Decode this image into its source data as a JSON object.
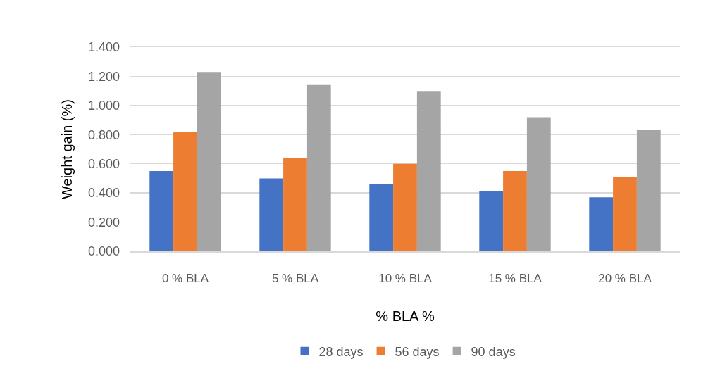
{
  "chart_data": {
    "type": "bar",
    "xlabel": "% BLA %",
    "ylabel": "Weight gain (%)",
    "categories": [
      "0 % BLA",
      "5 % BLA",
      "10 % BLA",
      "15 % BLA",
      "20 % BLA"
    ],
    "series": [
      {
        "name": "28 days",
        "color": "#4472c4",
        "values": [
          0.55,
          0.5,
          0.46,
          0.41,
          0.37
        ]
      },
      {
        "name": "56 days",
        "color": "#ed7d31",
        "values": [
          0.82,
          0.64,
          0.6,
          0.55,
          0.51
        ]
      },
      {
        "name": "90 days",
        "color": "#a5a5a5",
        "values": [
          1.23,
          1.14,
          1.1,
          0.92,
          0.83
        ]
      }
    ],
    "ylim": [
      0,
      1.4
    ],
    "yticks": [
      {
        "value": 0,
        "label": "0.000"
      },
      {
        "value": 0.2,
        "label": "0.200"
      },
      {
        "value": 0.4,
        "label": "0.400"
      },
      {
        "value": 0.6,
        "label": "0.600"
      },
      {
        "value": 0.8,
        "label": "0.800"
      },
      {
        "value": 1.0,
        "label": "1.000"
      },
      {
        "value": 1.2,
        "label": "1.200"
      },
      {
        "value": 1.4,
        "label": "1.400"
      }
    ],
    "grid": "y",
    "legend": "bottom"
  }
}
